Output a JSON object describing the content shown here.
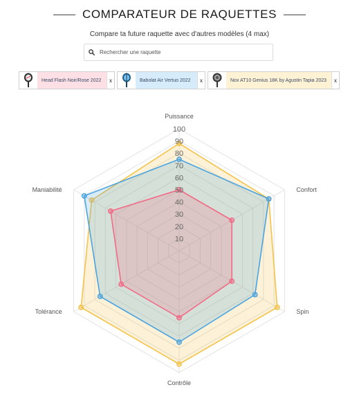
{
  "header": {
    "title": "COMPARATEUR DE RAQUETTES",
    "subtitle": "Compare ta future raquette avec d'autres modèles (4 max)"
  },
  "search": {
    "placeholder": "Rechercher une raquette",
    "icon": "search-icon"
  },
  "chips": [
    {
      "name": "Head Flash Noir/Rose 2022",
      "remove_label": "x",
      "color": "#f06b86",
      "bg": "#fde0e6"
    },
    {
      "name": "Babolat Air Vertuo 2022",
      "remove_label": "x",
      "color": "#4aa3df",
      "bg": "#d6ecfb"
    },
    {
      "name": "Nox AT10 Genius 18K by Agustin Tapia 2023",
      "remove_label": "x",
      "color": "#f5c24a",
      "bg": "#fdf2d4"
    }
  ],
  "chart_data": {
    "type": "radar",
    "axes": [
      "Puissance",
      "Confort",
      "Spin",
      "Contrôle",
      "Tolérance",
      "Maniabilité"
    ],
    "ticks": [
      "10",
      "20",
      "30",
      "40",
      "50",
      "60",
      "70",
      "80",
      "90",
      "100"
    ],
    "range": [
      0,
      100
    ],
    "series": [
      {
        "name": "Nox AT10 Genius 18K by Agustin Tapia 2023",
        "values": [
          88,
          85,
          93,
          93,
          93,
          83
        ],
        "color": "#f5c24a"
      },
      {
        "name": "Babolat Air Vertuo 2022",
        "values": [
          75,
          85,
          72,
          75,
          75,
          90
        ],
        "color": "#4aa3df"
      },
      {
        "name": "Head Flash Noir/Rose 2022",
        "values": [
          50,
          50,
          50,
          55,
          55,
          65
        ],
        "color": "#f06b86"
      }
    ]
  }
}
